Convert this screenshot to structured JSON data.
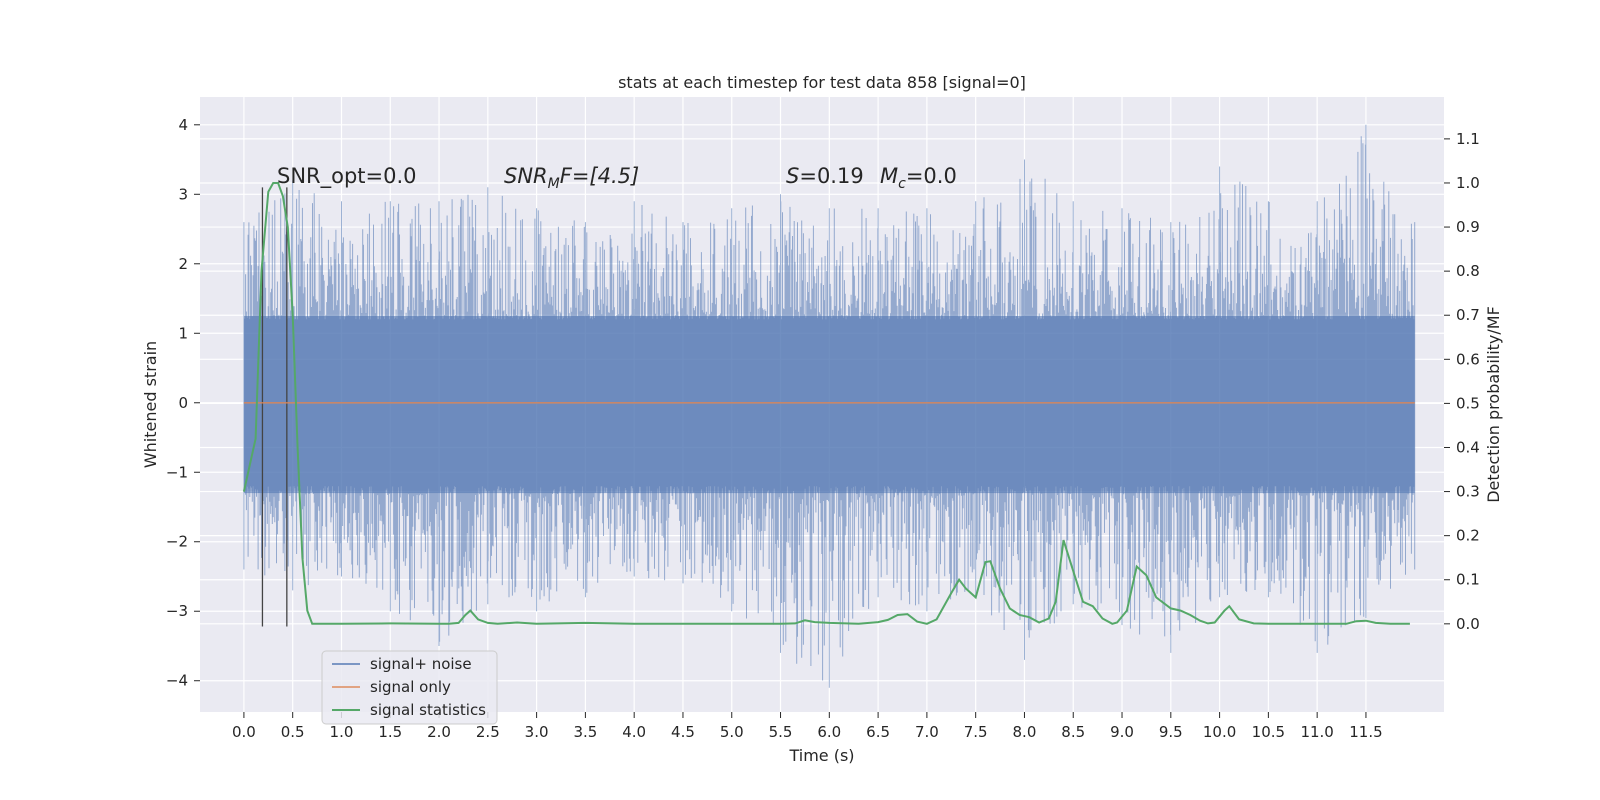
{
  "chart_data": {
    "type": "line",
    "title": "stats at each timestep for test data 858 [signal=0]",
    "xlabel": "Time (s)",
    "ylabel": "Whitened strain",
    "ylabel_right": "Detection probability/MF",
    "xlim": [
      -0.45,
      12.3
    ],
    "ylim": [
      -4.45,
      4.4
    ],
    "ylim_right": [
      -0.2,
      1.195
    ],
    "x_ticks": [
      0.0,
      0.5,
      1.0,
      1.5,
      2.0,
      2.5,
      3.0,
      3.5,
      4.0,
      4.5,
      5.0,
      5.5,
      6.0,
      6.5,
      7.0,
      7.5,
      8.0,
      8.5,
      9.0,
      9.5,
      10.0,
      10.5,
      11.0,
      11.5
    ],
    "x_tick_labels": [
      "0.0",
      "0.5",
      "1.0",
      "1.5",
      "2.0",
      "2.5",
      "3.0",
      "3.5",
      "4.0",
      "4.5",
      "5.0",
      "5.5",
      "6.0",
      "6.5",
      "7.0",
      "7.5",
      "8.0",
      "8.5",
      "9.0",
      "9.5",
      "10.0",
      "10.5",
      "11.0",
      "11.5"
    ],
    "y_ticks": [
      -4,
      -3,
      -2,
      -1,
      0,
      1,
      2,
      3,
      4
    ],
    "y_tick_labels": [
      "−4",
      "−3",
      "−2",
      "−1",
      "0",
      "1",
      "2",
      "3",
      "4"
    ],
    "y_ticks_right": [
      0.0,
      0.1,
      0.2,
      0.3,
      0.4,
      0.5,
      0.6,
      0.7,
      0.8,
      0.9,
      1.0,
      1.1
    ],
    "y_tick_labels_right": [
      "0.0",
      "0.1",
      "0.2",
      "0.3",
      "0.4",
      "0.5",
      "0.6",
      "0.7",
      "0.8",
      "0.9",
      "1.0",
      "1.1"
    ],
    "grid": true,
    "legend_position": "lower-left",
    "annotations": {
      "snr_opt": "SNR_opt=0.0",
      "snr_mf_main": "SNR",
      "snr_mf_sub": "M",
      "snr_mf_rest": "F=[4.5]",
      "s_main": "S",
      "s_rest": "=0.19",
      "mc_main": "M",
      "mc_sub": "c",
      "mc_rest": "=0.0"
    },
    "vertical_markers_x": [
      0.19,
      0.44
    ],
    "noise_envelope": {
      "x": [
        0.0,
        0.5,
        1.0,
        1.5,
        2.0,
        2.5,
        3.0,
        3.5,
        4.0,
        4.5,
        5.0,
        5.5,
        6.0,
        6.5,
        7.0,
        7.5,
        8.0,
        8.5,
        9.0,
        9.5,
        10.0,
        10.5,
        11.0,
        11.5,
        12.0
      ],
      "upper": [
        2.6,
        3.2,
        2.9,
        2.9,
        2.9,
        3.1,
        2.8,
        2.6,
        2.9,
        2.6,
        2.8,
        3.0,
        2.8,
        2.8,
        2.8,
        2.9,
        3.5,
        2.9,
        2.8,
        2.6,
        3.4,
        2.9,
        2.9,
        4.0,
        2.6
      ],
      "lower": [
        -2.4,
        -2.7,
        -2.5,
        -3.0,
        -3.5,
        -2.9,
        -3.0,
        -2.8,
        -2.5,
        -2.6,
        -3.0,
        -3.6,
        -4.1,
        -2.8,
        -3.0,
        -2.8,
        -3.7,
        -2.9,
        -3.2,
        -3.6,
        -2.8,
        -2.8,
        -3.6,
        -3.1,
        -2.4
      ]
    },
    "series": [
      {
        "name": "signal+ noise",
        "color": "#4c72b0",
        "values_note": "",
        "x": [],
        "y": []
      },
      {
        "name": "signal only",
        "color": "#dd8452",
        "x": [
          0.0,
          12.0
        ],
        "y": [
          0.0,
          0.0
        ]
      },
      {
        "name": "signal statistics",
        "color": "#55a868",
        "axis": "right",
        "x": [
          0.0,
          0.12,
          0.18,
          0.25,
          0.3,
          0.35,
          0.4,
          0.45,
          0.5,
          0.55,
          0.6,
          0.65,
          0.7,
          0.8,
          1.0,
          1.5,
          2.0,
          2.1,
          2.2,
          2.27,
          2.32,
          2.4,
          2.5,
          2.6,
          2.8,
          3.0,
          3.5,
          4.0,
          4.5,
          5.0,
          5.5,
          5.65,
          5.75,
          5.85,
          6.0,
          6.3,
          6.5,
          6.6,
          6.7,
          6.8,
          6.9,
          7.0,
          7.1,
          7.25,
          7.33,
          7.4,
          7.5,
          7.6,
          7.65,
          7.75,
          7.85,
          7.95,
          8.05,
          8.15,
          8.25,
          8.32,
          8.4,
          8.5,
          8.6,
          8.7,
          8.8,
          8.9,
          8.95,
          9.05,
          9.15,
          9.25,
          9.35,
          9.5,
          9.6,
          9.7,
          9.8,
          9.88,
          9.95,
          10.05,
          10.1,
          10.2,
          10.35,
          10.5,
          11.0,
          11.3,
          11.4,
          11.5,
          11.6,
          11.75,
          11.95
        ],
        "y": [
          0.3,
          0.42,
          0.8,
          0.98,
          1.0,
          1.0,
          0.97,
          0.9,
          0.7,
          0.4,
          0.15,
          0.03,
          0.0,
          0.0,
          0.0,
          0.001,
          0.0,
          0.0,
          0.002,
          0.02,
          0.03,
          0.01,
          0.002,
          0.0,
          0.003,
          0.0,
          0.002,
          0.0,
          0.0,
          0.0,
          0.0,
          0.001,
          0.008,
          0.004,
          0.002,
          0.0,
          0.004,
          0.009,
          0.02,
          0.022,
          0.005,
          0.0,
          0.01,
          0.07,
          0.1,
          0.08,
          0.06,
          0.14,
          0.142,
          0.08,
          0.035,
          0.02,
          0.015,
          0.003,
          0.012,
          0.05,
          0.19,
          0.12,
          0.05,
          0.04,
          0.012,
          0.0,
          0.003,
          0.03,
          0.13,
          0.11,
          0.06,
          0.035,
          0.03,
          0.02,
          0.007,
          0.001,
          0.003,
          0.03,
          0.04,
          0.01,
          0.001,
          0.0,
          0.0,
          0.0,
          0.006,
          0.007,
          0.002,
          0.0,
          0.0
        ]
      }
    ]
  }
}
